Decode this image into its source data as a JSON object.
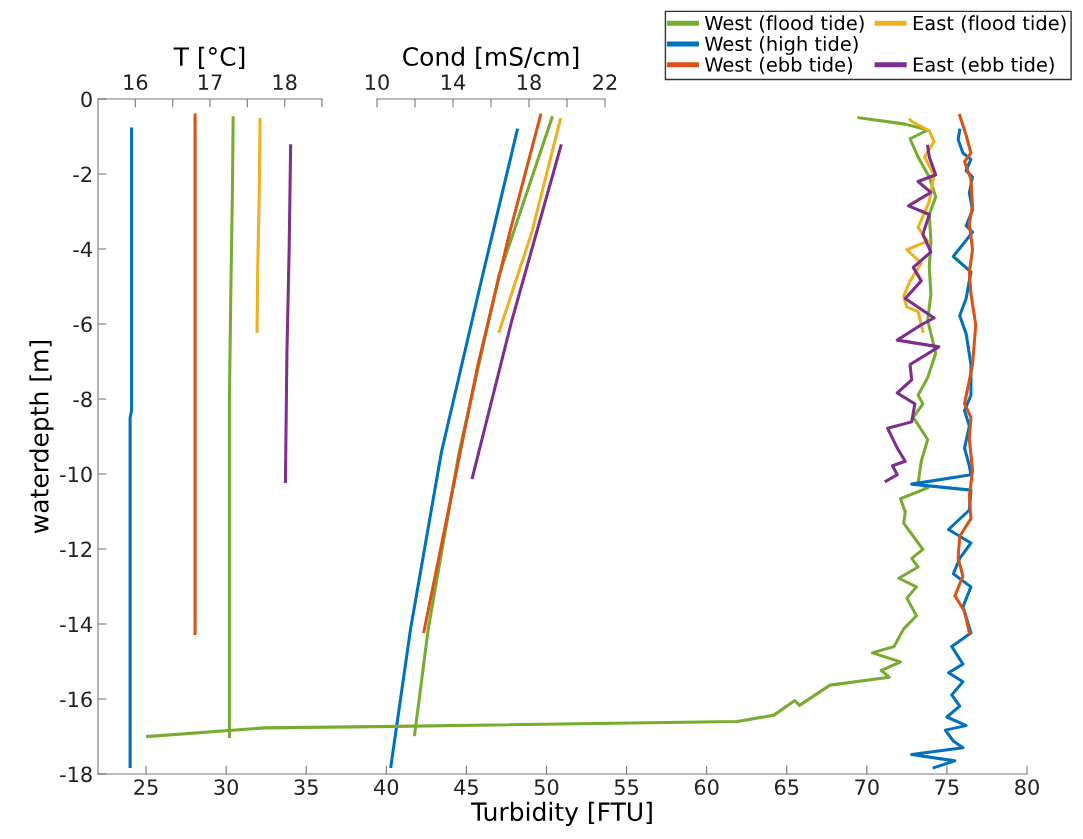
{
  "chart_data": [
    {
      "type": "line",
      "xlabel": "T [°C]",
      "xlim": [
        15.5,
        18.5
      ],
      "xticks": [
        16,
        {
          "value": 16.5,
          "label": null
        },
        17,
        {
          "value": 17.5,
          "label": null
        },
        18,
        {
          "value": 18.5,
          "label": null
        }
      ],
      "ylim": [
        -18,
        0
      ],
      "tick_labels": "x",
      "marker": "none",
      "line_style": "solid",
      "series": [
        {
          "color": "#77ac30",
          "x": [
            17.31,
            17.3,
            17.28,
            17.26,
            17.26
          ],
          "values": [
            -0.5,
            -2.5,
            -5.0,
            -8.0,
            -17.0
          ]
        },
        {
          "color": "#0072bd",
          "x": [
            15.95,
            15.95,
            15.93,
            15.93
          ],
          "values": [
            -0.8,
            -8.3,
            -8.5,
            -17.8
          ]
        },
        {
          "color": "#d95319",
          "x": [
            16.8,
            16.8
          ],
          "values": [
            -0.43,
            -14.25
          ]
        },
        {
          "color": "#edb120",
          "x": [
            17.67,
            17.66,
            17.64,
            17.63
          ],
          "values": [
            -0.55,
            -2.5,
            -4.4,
            -6.2
          ]
        },
        {
          "color": "#7e2f8e",
          "x": [
            18.08,
            18.06,
            18.03,
            18.01
          ],
          "values": [
            -1.25,
            -4.0,
            -6.8,
            -10.2
          ]
        }
      ]
    },
    {
      "type": "line",
      "xlabel": "Cond [mS/cm]",
      "xlim": [
        10,
        22
      ],
      "xticks": [
        10,
        {
          "value": 12,
          "label": null
        },
        14,
        {
          "value": 16,
          "label": null
        },
        18,
        {
          "value": 20,
          "label": null
        },
        22
      ],
      "ylim": [
        -18,
        0
      ],
      "tick_labels": "x",
      "marker": "none",
      "line_style": "solid",
      "series": [
        {
          "color": "#77ac30",
          "x": [
            19.21,
            16.41,
            14.32,
            12.7,
            11.98
          ],
          "values": [
            -0.5,
            -4.72,
            -9.42,
            -14.12,
            -16.95
          ]
        },
        {
          "color": "#0072bd",
          "x": [
            17.38,
            15.55,
            13.39,
            11.77,
            10.73
          ],
          "values": [
            -0.83,
            -4.72,
            -9.42,
            -14.12,
            -17.8
          ]
        },
        {
          "color": "#d95319",
          "x": [
            18.61,
            16.99,
            15.32,
            12.47
          ],
          "values": [
            -0.43,
            -3.55,
            -7.07,
            -14.2
          ]
        },
        {
          "color": "#edb120",
          "x": [
            19.65,
            18.15,
            16.43
          ],
          "values": [
            -0.55,
            -3.55,
            -6.2
          ]
        },
        {
          "color": "#7e2f8e",
          "x": [
            19.68,
            17.1,
            15.02
          ],
          "values": [
            -1.25,
            -5.9,
            -10.1
          ]
        }
      ]
    },
    {
      "type": "line",
      "xlabel": "Turbidity [FTU]",
      "ylabel": "waterdepth [m]",
      "xlim": [
        22,
        80
      ],
      "xticks": [
        25,
        30,
        35,
        40,
        45,
        50,
        55,
        60,
        65,
        70,
        75,
        80
      ],
      "ylim": [
        -18,
        0
      ],
      "yticks": [
        0,
        -2,
        -4,
        -6,
        -8,
        -10,
        -12,
        -14,
        -16,
        -18
      ],
      "legend": "top right",
      "marker": "none",
      "line_style": "solid",
      "series": [
        {
          "name": "West (flood tide)",
          "color": "#77ac30",
          "x": [
            69.5,
            72.4,
            73.8,
            72.7,
            73.2,
            73.9,
            74.3,
            73.9,
            74.0,
            73.9,
            74.0,
            73.8,
            74.3,
            73.8,
            73.2,
            73.5,
            72.9,
            73.8,
            73.4,
            73.2,
            73.8,
            72.1,
            72.4,
            72.3,
            72.9,
            73.5,
            72.8,
            73.2,
            72.0,
            73.1,
            72.5,
            73.1,
            72.3,
            71.7,
            70.35,
            72.1,
            70.9,
            71.4,
            67.7,
            65.8,
            65.5,
            64.2,
            61.9,
            40.6,
            32.4,
            25.1
          ],
          "values": [
            -0.5,
            -0.67,
            -0.83,
            -1.06,
            -1.55,
            -2.08,
            -2.61,
            -3.08,
            -3.79,
            -4.49,
            -5.2,
            -5.9,
            -6.78,
            -7.43,
            -7.9,
            -8.13,
            -8.49,
            -9.08,
            -9.66,
            -10.25,
            -10.37,
            -10.66,
            -11.01,
            -11.31,
            -11.66,
            -12.01,
            -12.25,
            -12.48,
            -12.78,
            -13.01,
            -13.31,
            -13.78,
            -14.13,
            -14.6,
            -14.77,
            -15.01,
            -15.24,
            -15.42,
            -15.63,
            -16.17,
            -16.04,
            -16.43,
            -16.6,
            -16.73,
            -16.77,
            -17.0
          ]
        },
        {
          "name": "West (high tide)",
          "color": "#0072bd",
          "x": [
            75.8,
            75.7,
            76.0,
            76.5,
            76.2,
            76.6,
            76.4,
            76.6,
            76.2,
            76.6,
            75.4,
            76.5,
            76.2,
            75.8,
            76.2,
            76.5,
            76.5,
            76.1,
            76.4,
            76.1,
            76.4,
            76.5,
            72.8,
            76.5,
            76.4,
            75.1,
            76.5,
            75.8,
            75.4,
            76.5,
            76.0,
            76.5,
            75.3,
            76.0,
            75.1,
            76.0,
            75.3,
            75.8,
            75.0,
            76.2,
            74.9,
            75.4,
            76.0,
            72.8,
            75.5,
            74.2
          ],
          "values": [
            -0.83,
            -1.08,
            -1.44,
            -1.61,
            -1.91,
            -2.08,
            -2.5,
            -2.96,
            -3.38,
            -3.55,
            -4.2,
            -4.61,
            -5.32,
            -5.78,
            -6.26,
            -7.08,
            -7.9,
            -8.31,
            -8.72,
            -9.31,
            -9.78,
            -10.02,
            -10.27,
            -10.43,
            -10.96,
            -11.48,
            -11.84,
            -12.25,
            -12.66,
            -13.01,
            -13.54,
            -14.24,
            -14.6,
            -15.07,
            -15.3,
            -15.54,
            -15.89,
            -16.19,
            -16.48,
            -16.71,
            -16.83,
            -17.12,
            -17.3,
            -17.48,
            -17.65,
            -17.83
          ]
        },
        {
          "name": "West (ebb tide)",
          "color": "#d95319",
          "x": [
            75.8,
            76.2,
            76.5,
            76.1,
            76.5,
            76.6,
            76.4,
            76.6,
            76.4,
            76.5,
            76.8,
            76.6,
            76.1,
            76.5,
            76.4,
            76.6,
            76.4,
            76.5,
            75.8,
            75.7,
            76.0,
            75.5,
            76.1,
            76.4
          ],
          "values": [
            -0.44,
            -0.97,
            -1.44,
            -1.67,
            -2.14,
            -2.85,
            -3.32,
            -4.02,
            -4.61,
            -5.2,
            -6.02,
            -7.08,
            -8.13,
            -8.49,
            -9.08,
            -9.9,
            -10.6,
            -11.19,
            -11.66,
            -12.25,
            -12.72,
            -13.25,
            -13.66,
            -14.24
          ]
        },
        {
          "name": "East (flood tide)",
          "color": "#edb120",
          "x": [
            72.7,
            72.8,
            73.9,
            74.2,
            73.6,
            74.2,
            73.9,
            73.2,
            73.8,
            72.5,
            73.4,
            72.7,
            72.3,
            72.5,
            73.2,
            73.5
          ],
          "values": [
            -0.55,
            -0.6,
            -0.85,
            -1.14,
            -1.55,
            -2.02,
            -2.73,
            -3.43,
            -3.79,
            -4.02,
            -4.38,
            -4.85,
            -5.26,
            -5.55,
            -5.67,
            -6.2
          ]
        },
        {
          "name": "East (ebb tide)",
          "color": "#7e2f8e",
          "x": [
            73.8,
            73.9,
            74.3,
            73.2,
            74.0,
            72.6,
            73.9,
            73.5,
            74.0,
            72.9,
            73.4,
            72.4,
            74.2,
            73.4,
            71.9,
            74.5,
            72.7,
            72.8,
            71.9,
            73.0,
            72.8,
            71.3,
            71.9,
            72.4,
            71.6,
            71.9,
            71.2
          ],
          "values": [
            -1.26,
            -1.55,
            -2.02,
            -2.2,
            -2.49,
            -2.85,
            -3.08,
            -3.61,
            -4.08,
            -4.49,
            -4.85,
            -5.32,
            -5.84,
            -6.02,
            -6.43,
            -6.61,
            -7.08,
            -7.49,
            -7.84,
            -8.13,
            -8.61,
            -8.78,
            -9.31,
            -9.66,
            -9.78,
            -10.02,
            -10.19
          ]
        }
      ]
    }
  ]
}
